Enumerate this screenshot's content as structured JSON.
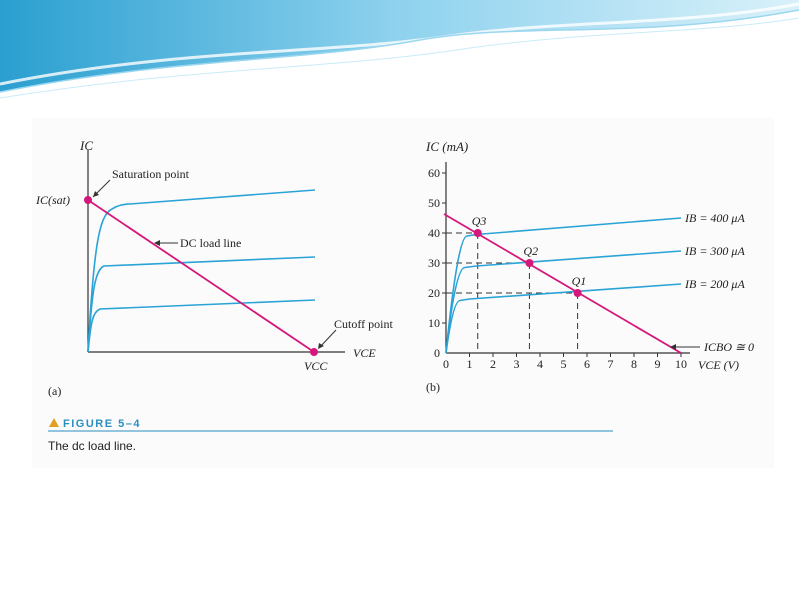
{
  "colors": {
    "curve": "#2aa3d6",
    "load_line": "#d4177a",
    "point": "#d4177a",
    "axis": "#333333",
    "caption_accent": "#2a8fbf",
    "wave_dark": "#4fb7df",
    "wave_light": "#bfe6f5"
  },
  "figure": {
    "number_label": "FIGURE 5–4",
    "caption": "The dc load line."
  },
  "chart_data": [
    {
      "panel_label": "(a)",
      "type": "line",
      "ylabel": "IC",
      "xlabel": "VCE",
      "y_intercept_label": "IC(sat)",
      "x_intercept_label": "VCC",
      "annotations": [
        "Saturation point",
        "DC load line",
        "Cutoff point"
      ]
    },
    {
      "panel_label": "(b)",
      "type": "line",
      "ylabel": "IC (mA)",
      "xlabel": "VCE (V)",
      "xlim": [
        0,
        10
      ],
      "ylim": [
        0,
        60
      ],
      "x_ticks": [
        0,
        1,
        2,
        3,
        4,
        5,
        6,
        7,
        8,
        9,
        10
      ],
      "y_ticks": [
        0,
        10,
        20,
        30,
        40,
        50,
        60
      ],
      "load_line": {
        "x": [
          0,
          10
        ],
        "y": [
          45,
          0
        ]
      },
      "series": [
        {
          "name": "IB = 400 μA",
          "x": [
            0,
            0.5,
            0.9,
            1.3,
            10
          ],
          "y": [
            0,
            35,
            39,
            39.5,
            45
          ]
        },
        {
          "name": "IB = 300 μA",
          "x": [
            0,
            0.4,
            0.8,
            1.3,
            10
          ],
          "y": [
            0,
            25,
            28.5,
            29,
            34
          ]
        },
        {
          "name": "IB = 200 μA",
          "x": [
            0,
            0.3,
            0.6,
            1.0,
            10
          ],
          "y": [
            0,
            15,
            17.5,
            18,
            23
          ]
        }
      ],
      "q_points": [
        {
          "label": "Q3",
          "x": 1.35,
          "y": 40
        },
        {
          "label": "Q2",
          "x": 3.55,
          "y": 30
        },
        {
          "label": "Q1",
          "x": 5.6,
          "y": 20
        }
      ],
      "cutoff_label": "ICBO ≅ 0"
    }
  ]
}
